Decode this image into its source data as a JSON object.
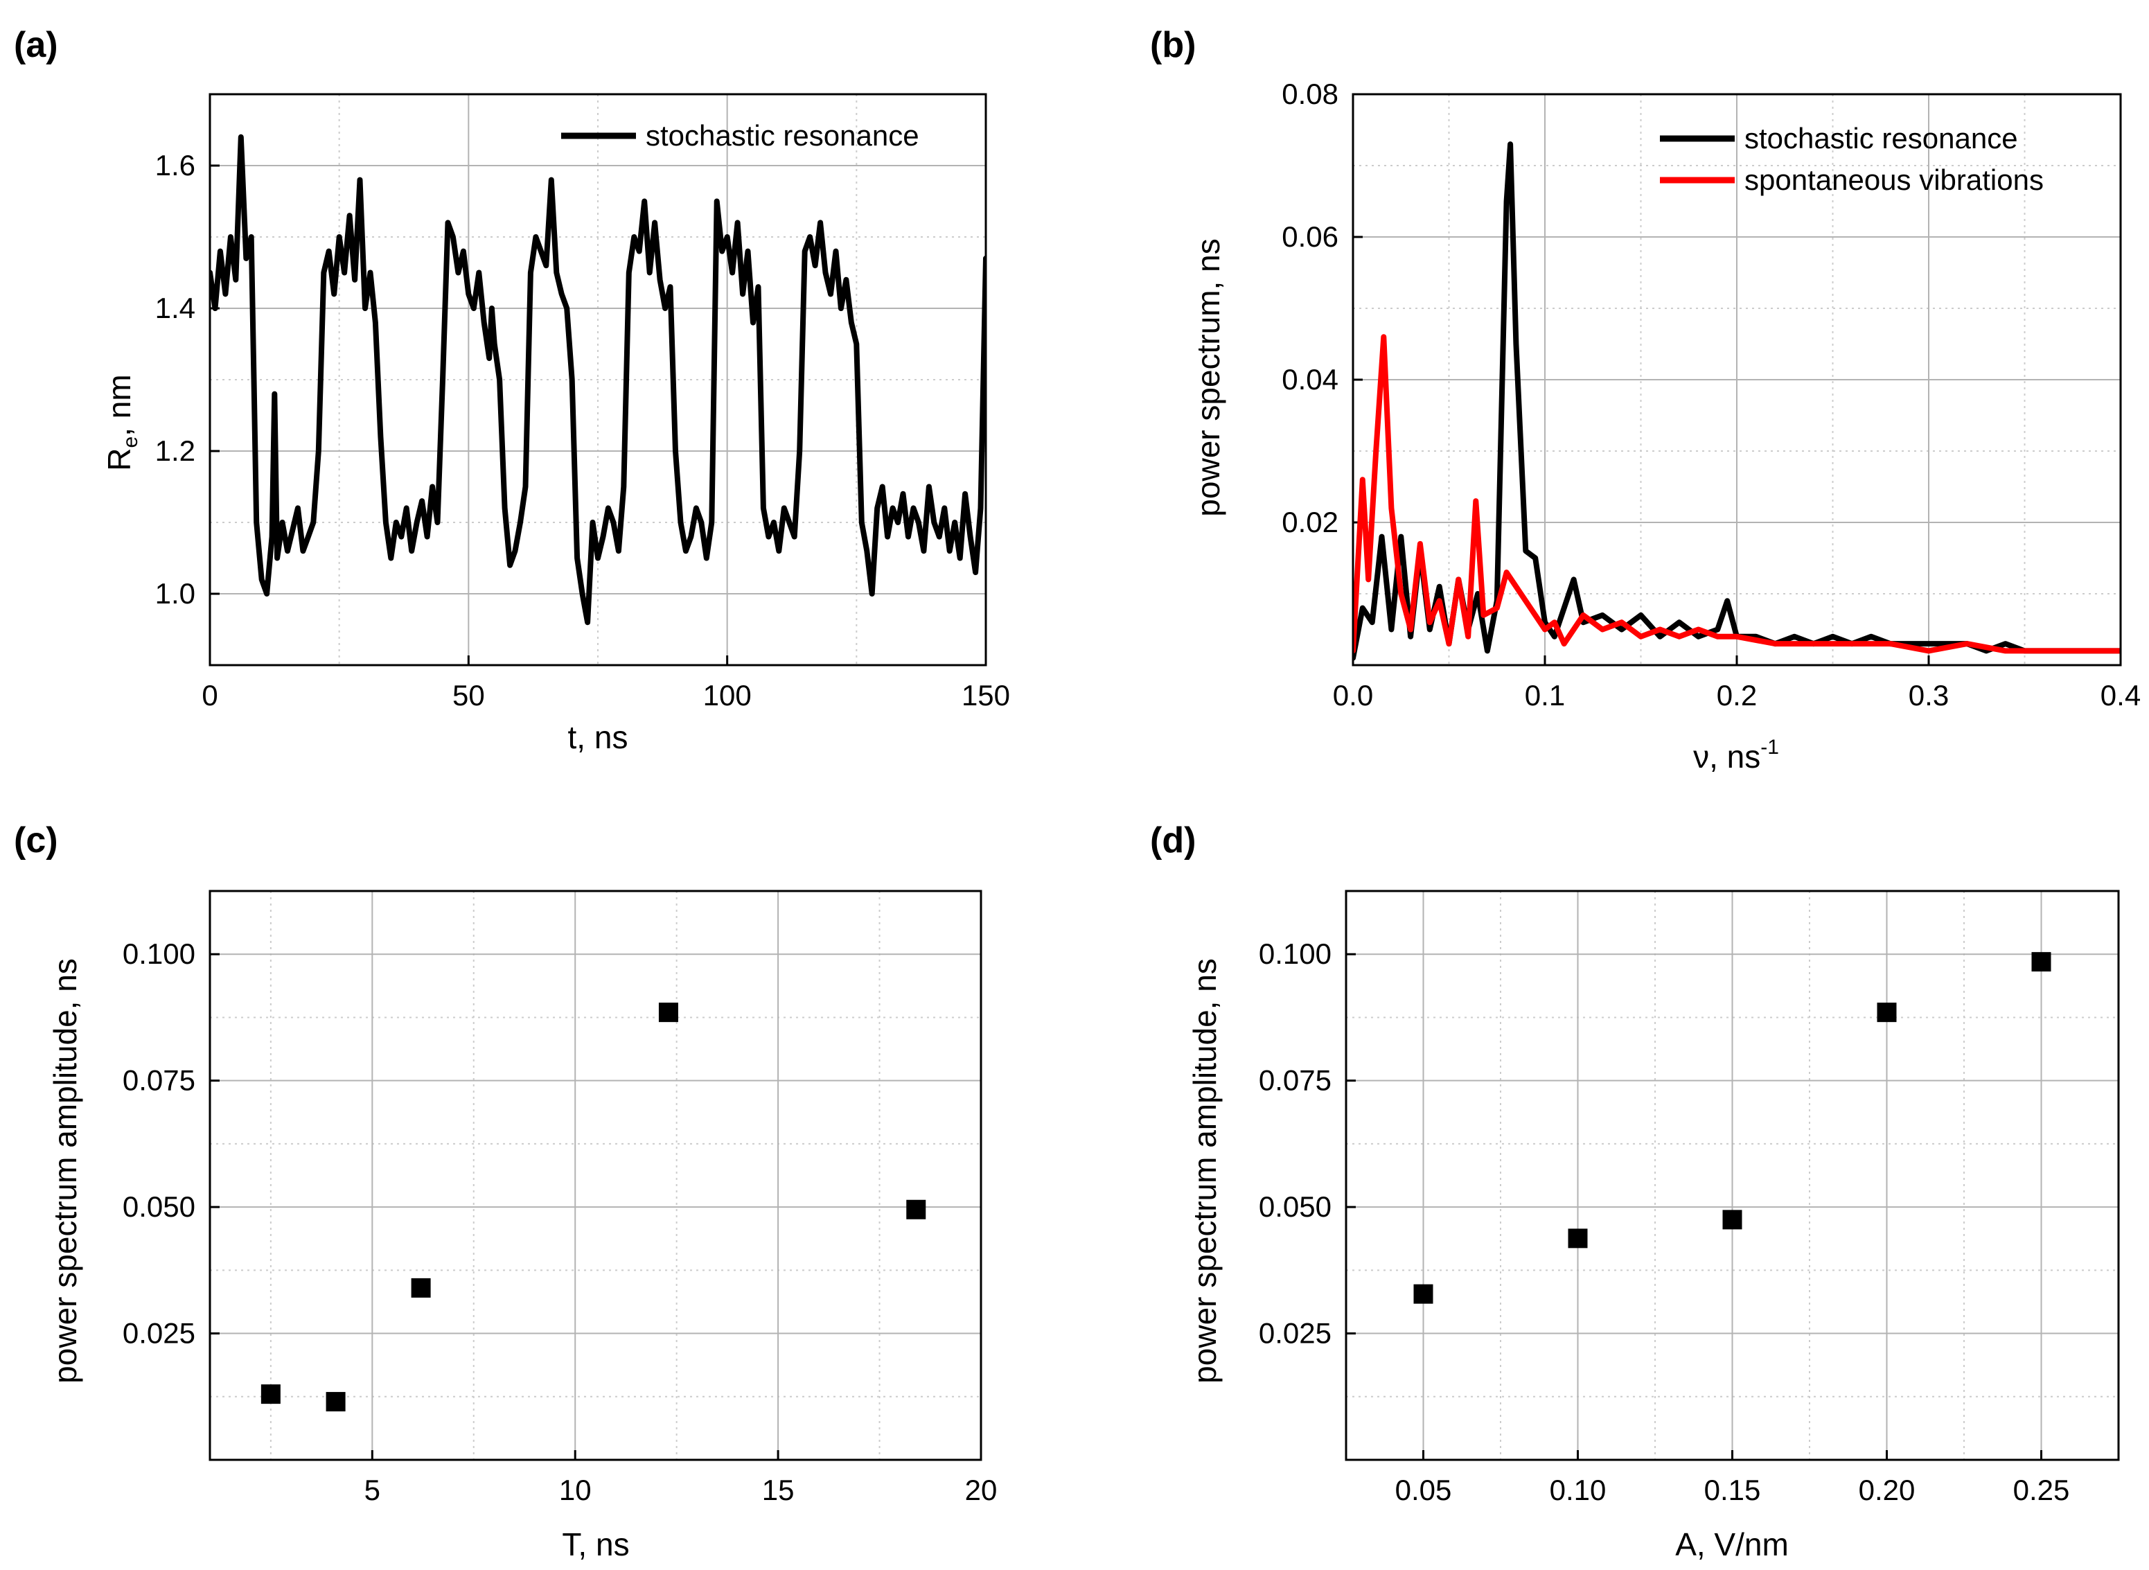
{
  "chart_data": [
    {
      "id": "a",
      "panel_label": "(a)",
      "type": "line",
      "xlabel": "t, ns",
      "ylabel_main": "R",
      "ylabel_sub": "e",
      "ylabel_rest": ", nm",
      "xlim": [
        0,
        150
      ],
      "ylim": [
        0.9,
        1.7
      ],
      "xticks": [
        0,
        50,
        100,
        150
      ],
      "xtick_labels": [
        "0",
        "50",
        "100",
        "150"
      ],
      "yticks": [
        1.0,
        1.2,
        1.4,
        1.6
      ],
      "ytick_labels": [
        "1.0",
        "1.2",
        "1.4",
        "1.6"
      ],
      "grid": true,
      "legend_position": "top-right",
      "series": [
        {
          "name": "stochastic resonance",
          "color": "#000000",
          "x": [
            0,
            1,
            2,
            3,
            4,
            5,
            6,
            7,
            8,
            8.5,
            9,
            10,
            11,
            12,
            12.5,
            13,
            14,
            15,
            16,
            17,
            18,
            19,
            20,
            21,
            22,
            23,
            24,
            25,
            26,
            27,
            28,
            29,
            30,
            31,
            32,
            33,
            34,
            35,
            36,
            37,
            38,
            39,
            40,
            41,
            42,
            43,
            44,
            45,
            46,
            47,
            48,
            49,
            50,
            51,
            52,
            53,
            54,
            54.5,
            55,
            56,
            57,
            58,
            59,
            60,
            61,
            62,
            63,
            64,
            65,
            66,
            67,
            68,
            69,
            70,
            71,
            72,
            73,
            74,
            75,
            76,
            77,
            78,
            79,
            80,
            81,
            82,
            83,
            84,
            85,
            86,
            87,
            88,
            89,
            90,
            91,
            92,
            93,
            94,
            95,
            96,
            97,
            98,
            99,
            100,
            101,
            102,
            103,
            104,
            105,
            106,
            107,
            108,
            109,
            110,
            111,
            112,
            113,
            114,
            115,
            116,
            117,
            118,
            119,
            120,
            121,
            122,
            123,
            124,
            125,
            126,
            127,
            128,
            129,
            130,
            131,
            132,
            133,
            134,
            135,
            136,
            137,
            138,
            139,
            140,
            141,
            142,
            143,
            144,
            145,
            146,
            147,
            148,
            149,
            150
          ],
          "y": [
            1.45,
            1.4,
            1.48,
            1.42,
            1.5,
            1.44,
            1.64,
            1.47,
            1.5,
            1.3,
            1.1,
            1.02,
            1.0,
            1.08,
            1.28,
            1.05,
            1.1,
            1.06,
            1.09,
            1.12,
            1.06,
            1.08,
            1.1,
            1.2,
            1.45,
            1.48,
            1.42,
            1.5,
            1.45,
            1.53,
            1.44,
            1.58,
            1.4,
            1.45,
            1.38,
            1.22,
            1.1,
            1.05,
            1.1,
            1.08,
            1.12,
            1.06,
            1.1,
            1.13,
            1.08,
            1.15,
            1.1,
            1.3,
            1.52,
            1.5,
            1.45,
            1.48,
            1.42,
            1.4,
            1.45,
            1.38,
            1.33,
            1.4,
            1.35,
            1.3,
            1.12,
            1.04,
            1.06,
            1.1,
            1.15,
            1.45,
            1.5,
            1.48,
            1.46,
            1.58,
            1.45,
            1.42,
            1.4,
            1.3,
            1.05,
            1.0,
            0.96,
            1.1,
            1.05,
            1.08,
            1.12,
            1.1,
            1.06,
            1.15,
            1.45,
            1.5,
            1.48,
            1.55,
            1.45,
            1.52,
            1.44,
            1.4,
            1.43,
            1.2,
            1.1,
            1.06,
            1.08,
            1.12,
            1.1,
            1.05,
            1.1,
            1.55,
            1.48,
            1.5,
            1.45,
            1.52,
            1.42,
            1.48,
            1.38,
            1.43,
            1.12,
            1.08,
            1.1,
            1.06,
            1.12,
            1.1,
            1.08,
            1.2,
            1.48,
            1.5,
            1.46,
            1.52,
            1.45,
            1.42,
            1.48,
            1.4,
            1.44,
            1.38,
            1.35,
            1.1,
            1.06,
            1.0,
            1.12,
            1.15,
            1.08,
            1.12,
            1.1,
            1.14,
            1.08,
            1.12,
            1.1,
            1.06,
            1.15,
            1.1,
            1.08,
            1.12,
            1.06,
            1.1,
            1.05,
            1.14,
            1.08,
            1.03,
            1.12,
            1.47
          ]
        }
      ]
    },
    {
      "id": "b",
      "panel_label": "(b)",
      "type": "line",
      "xlabel_main": "ν, ns",
      "xlabel_sup": "-1",
      "ylabel": "power spectrum, ns",
      "xlim": [
        0,
        0.4
      ],
      "ylim": [
        0,
        0.08
      ],
      "xticks": [
        0.0,
        0.1,
        0.2,
        0.3,
        0.4
      ],
      "xtick_labels": [
        "0.0",
        "0.1",
        "0.2",
        "0.3",
        "0.4"
      ],
      "yticks": [
        0.02,
        0.04,
        0.06,
        0.08
      ],
      "ytick_labels": [
        "0.02",
        "0.04",
        "0.06",
        "0.08"
      ],
      "grid": true,
      "legend_position": "top-right",
      "series": [
        {
          "name": "stochastic resonance",
          "color": "#000000",
          "x": [
            0.0,
            0.005,
            0.01,
            0.015,
            0.02,
            0.025,
            0.03,
            0.035,
            0.04,
            0.045,
            0.05,
            0.055,
            0.06,
            0.065,
            0.07,
            0.075,
            0.08,
            0.082,
            0.085,
            0.09,
            0.095,
            0.1,
            0.105,
            0.11,
            0.115,
            0.12,
            0.13,
            0.14,
            0.15,
            0.16,
            0.17,
            0.18,
            0.19,
            0.195,
            0.2,
            0.21,
            0.22,
            0.23,
            0.24,
            0.25,
            0.26,
            0.27,
            0.28,
            0.29,
            0.3,
            0.31,
            0.32,
            0.33,
            0.34,
            0.35,
            0.36,
            0.37,
            0.38,
            0.39,
            0.4
          ],
          "y": [
            0.001,
            0.008,
            0.006,
            0.018,
            0.005,
            0.018,
            0.004,
            0.016,
            0.005,
            0.011,
            0.003,
            0.012,
            0.005,
            0.01,
            0.002,
            0.009,
            0.065,
            0.073,
            0.045,
            0.016,
            0.015,
            0.006,
            0.004,
            0.008,
            0.012,
            0.006,
            0.007,
            0.005,
            0.007,
            0.004,
            0.006,
            0.004,
            0.005,
            0.009,
            0.004,
            0.004,
            0.003,
            0.004,
            0.003,
            0.004,
            0.003,
            0.004,
            0.003,
            0.003,
            0.003,
            0.003,
            0.003,
            0.002,
            0.003,
            0.002,
            0.002,
            0.002,
            0.002,
            0.002,
            0.002
          ]
        },
        {
          "name": "spontaneous vibrations",
          "color": "#ff0000",
          "x": [
            0.0,
            0.005,
            0.008,
            0.012,
            0.016,
            0.02,
            0.025,
            0.03,
            0.035,
            0.04,
            0.045,
            0.05,
            0.055,
            0.06,
            0.064,
            0.068,
            0.075,
            0.08,
            0.09,
            0.1,
            0.105,
            0.11,
            0.12,
            0.13,
            0.14,
            0.15,
            0.16,
            0.17,
            0.18,
            0.19,
            0.2,
            0.22,
            0.24,
            0.26,
            0.28,
            0.3,
            0.32,
            0.34,
            0.36,
            0.38,
            0.4
          ],
          "y": [
            0.002,
            0.026,
            0.012,
            0.03,
            0.046,
            0.022,
            0.01,
            0.005,
            0.017,
            0.006,
            0.009,
            0.003,
            0.012,
            0.004,
            0.023,
            0.007,
            0.008,
            0.013,
            0.009,
            0.005,
            0.006,
            0.003,
            0.007,
            0.005,
            0.006,
            0.004,
            0.005,
            0.004,
            0.005,
            0.004,
            0.004,
            0.003,
            0.003,
            0.003,
            0.003,
            0.002,
            0.003,
            0.002,
            0.002,
            0.002,
            0.002
          ]
        }
      ]
    },
    {
      "id": "c",
      "panel_label": "(c)",
      "type": "scatter",
      "xlabel": "T, ns",
      "ylabel": "power spectrum amplitude, ns",
      "xlim": [
        1,
        20
      ],
      "ylim": [
        0,
        0.1125
      ],
      "xticks": [
        5,
        10,
        15,
        20
      ],
      "xtick_labels": [
        "5",
        "10",
        "15",
        "20"
      ],
      "yticks": [
        0.025,
        0.05,
        0.075,
        0.1
      ],
      "ytick_labels": [
        "0.025",
        "0.050",
        "0.075",
        "0.100"
      ],
      "grid": true,
      "series": [
        {
          "name": "",
          "color": "#000000",
          "x": [
            2.5,
            4.1,
            6.2,
            12.3,
            18.4
          ],
          "y": [
            0.013,
            0.0115,
            0.034,
            0.0885,
            0.0495
          ]
        }
      ]
    },
    {
      "id": "d",
      "panel_label": "(d)",
      "type": "scatter",
      "xlabel": "A, V/nm",
      "ylabel": "power spectrum amplitude, ns",
      "xlim": [
        0.025,
        0.275
      ],
      "ylim": [
        0,
        0.1125
      ],
      "xticks": [
        0.05,
        0.1,
        0.15,
        0.2,
        0.25
      ],
      "xtick_labels": [
        "0.05",
        "0.10",
        "0.15",
        "0.20",
        "0.25"
      ],
      "yticks": [
        0.025,
        0.05,
        0.075,
        0.1
      ],
      "ytick_labels": [
        "0.025",
        "0.050",
        "0.075",
        "0.100"
      ],
      "grid": true,
      "series": [
        {
          "name": "",
          "color": "#000000",
          "x": [
            0.05,
            0.1,
            0.15,
            0.2,
            0.25
          ],
          "y": [
            0.0328,
            0.0438,
            0.0475,
            0.0885,
            0.0985
          ]
        }
      ]
    }
  ]
}
